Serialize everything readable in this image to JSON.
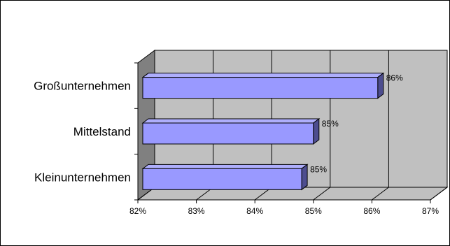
{
  "chart_data": {
    "type": "bar",
    "orientation": "horizontal",
    "three_d": true,
    "categories": [
      "Großunternehmen",
      "Mittelstand",
      "Kleinunternehmen"
    ],
    "values": [
      86.1,
      85.0,
      84.8
    ],
    "data_labels": [
      "86%",
      "85%",
      "85%"
    ],
    "x_ticks": [
      "82%",
      "83%",
      "84%",
      "85%",
      "86%",
      "87%"
    ],
    "xlim": [
      82,
      87
    ],
    "grid": true,
    "legend": "none",
    "colors": {
      "bar_front": "#9999ff",
      "bar_top": "#aeaefc",
      "bar_side": "#4d4d8f",
      "back_wall": "#c0c0c0",
      "side_wall": "#808080",
      "floor": "#c0c0c0",
      "grid": "#000000"
    }
  }
}
